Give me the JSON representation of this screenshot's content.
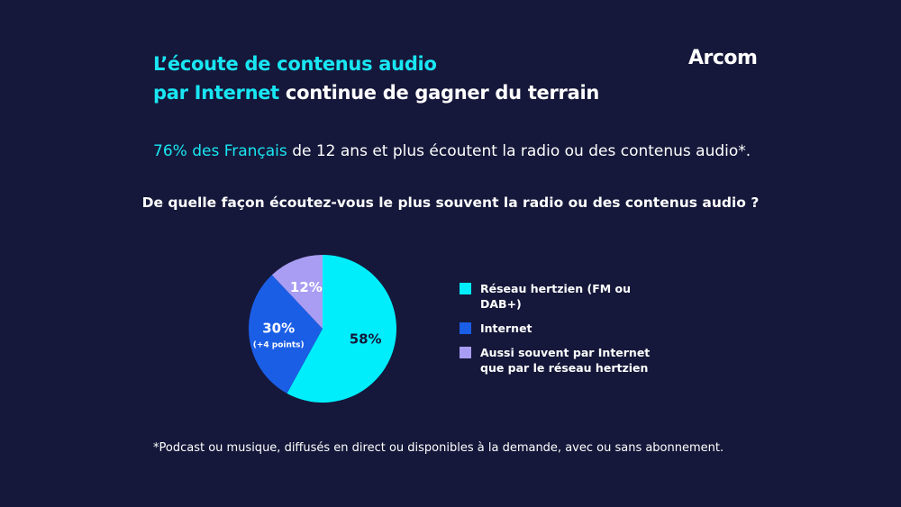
{
  "header": {
    "title_line1": "L’écoute de contenus audio",
    "title_line2_highlight": "par Internet",
    "title_line2_rest": "continue de gagner du terrain",
    "logo": "Arcom",
    "subtitle_highlight": "76% des Français",
    "subtitle_rest": "de 12 ans et plus écoutent la radio ou des contenus audio*."
  },
  "chart_data": {
    "type": "pie",
    "title": "De quelle façon écoutez-vous le plus souvent la radio ou des contenus audio ?",
    "categories": [
      "Réseau hertzien (FM ou DAB+)",
      "Internet",
      "Aussi souvent par Internet que par le réseau hertzien"
    ],
    "values": [
      58,
      30,
      12
    ],
    "value_labels": [
      "58%",
      "30%",
      "12%"
    ],
    "colors": [
      "#00eefc",
      "#1b5ee6",
      "#a99df3"
    ],
    "annotation": "(+4 points)"
  },
  "footnote": "*Podcast ou musique, diffusés en direct ou disponibles à la demande, avec ou sans abonnement."
}
